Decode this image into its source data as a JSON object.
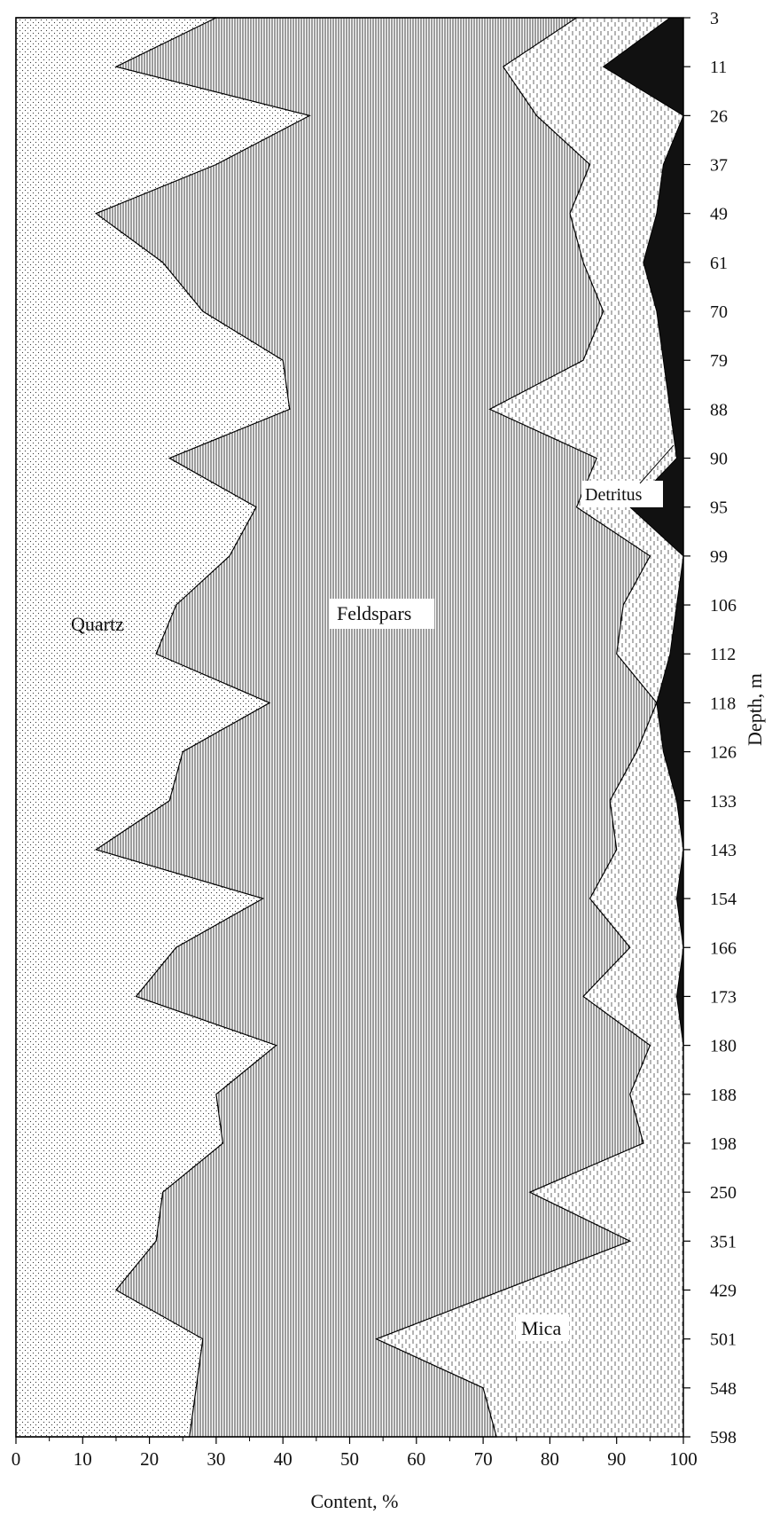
{
  "chart_data": {
    "type": "area",
    "orientation": "vertical-depth",
    "xlabel": "Content, %",
    "ylabel": "Depth, m",
    "xlim": [
      0,
      100
    ],
    "x_ticks": [
      0,
      10,
      20,
      30,
      40,
      50,
      60,
      70,
      80,
      90,
      100
    ],
    "depth_labels": [
      "3",
      "11",
      "26",
      "37",
      "49",
      "61",
      "70",
      "79",
      "88",
      "90",
      "95",
      "99",
      "106",
      "112",
      "118",
      "126",
      "133",
      "143",
      "154",
      "166",
      "173",
      "180",
      "188",
      "198",
      "250",
      "351",
      "429",
      "501",
      "548",
      "598"
    ],
    "series_labels": [
      "Quartz",
      "Feldspars",
      "Mica",
      "Detritus"
    ],
    "series": [
      {
        "name": "Quartz",
        "cumulative_boundary": [
          30,
          15,
          44,
          30,
          12,
          22,
          28,
          40,
          41,
          23,
          36,
          32,
          24,
          21,
          38,
          25,
          23,
          12,
          37,
          24,
          18,
          39,
          30,
          31,
          22,
          21,
          15,
          28,
          27,
          26
        ]
      },
      {
        "name": "Feldspars",
        "cumulative_boundary": [
          84,
          73,
          78,
          86,
          83,
          85,
          88,
          85,
          71,
          87,
          84,
          95,
          91,
          90,
          96,
          93,
          89,
          90,
          86,
          92,
          85,
          95,
          92,
          94,
          77,
          92,
          73,
          54,
          70,
          72
        ]
      },
      {
        "name": "Detritus",
        "cumulative_boundary": [
          98,
          88,
          100,
          97,
          96,
          94,
          96,
          97,
          98,
          99,
          92,
          100,
          99,
          98,
          96,
          97,
          99,
          100,
          99,
          100,
          99,
          100,
          100,
          100,
          100,
          100,
          100,
          100,
          100,
          100
        ]
      }
    ]
  }
}
